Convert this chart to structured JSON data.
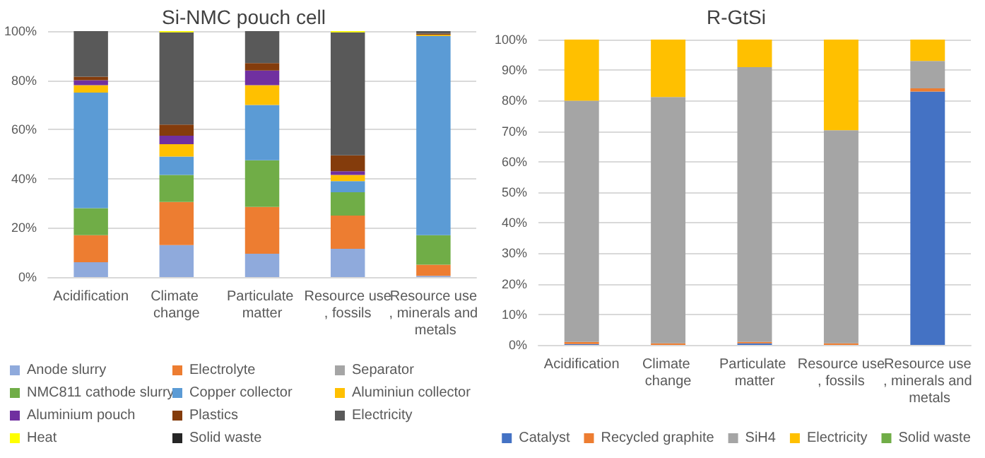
{
  "chart_data": [
    {
      "type": "bar",
      "title": "Si-NMC pouch cell",
      "stacked": true,
      "categories": [
        "Acidification",
        "Climate change",
        "Particulate matter",
        "Resource use, fossils",
        "Resource use, minerals and metals"
      ],
      "ylim": [
        0,
        100
      ],
      "yticks": [
        {
          "value": 0,
          "label": "0%"
        },
        {
          "value": 20,
          "label": "20%"
        },
        {
          "value": 40,
          "label": "40%"
        },
        {
          "value": 60,
          "label": "60%"
        },
        {
          "value": 80,
          "label": "80%"
        },
        {
          "value": 100,
          "label": "100%"
        }
      ],
      "grid": "y",
      "legend": "bottom",
      "series": [
        {
          "name": "Anode slurry",
          "color": "#8faadc",
          "values": [
            6,
            13,
            9.5,
            11.5,
            0.5
          ]
        },
        {
          "name": "Electrolyte",
          "color": "#ed7d31",
          "values": [
            11,
            17.5,
            19,
            13.5,
            4.5
          ]
        },
        {
          "name": "Separator",
          "color": "#a5a5a5",
          "values": [
            null,
            0,
            0,
            0,
            0
          ]
        },
        {
          "name": "NMC811 cathode slurry",
          "color": "#70ad47",
          "values": [
            11,
            11,
            19,
            9.5,
            12
          ]
        },
        {
          "name": "Copper collector",
          "color": "#5b9bd5",
          "values": [
            47,
            7.5,
            22.5,
            4.5,
            81
          ]
        },
        {
          "name": "Aluminiun collector",
          "color": "#ffc000",
          "values": [
            3,
            5,
            8,
            2.5,
            0.5
          ]
        },
        {
          "name": "Aluminium pouch",
          "color": "#7030a0",
          "values": [
            2,
            3.5,
            6,
            1.5,
            0
          ]
        },
        {
          "name": "Plastics",
          "color": "#843c0c",
          "values": [
            1.5,
            4.5,
            3,
            6.5,
            0.5
          ]
        },
        {
          "name": "Electricity",
          "color": "#595959",
          "values": [
            18.5,
            37.5,
            13,
            50,
            1
          ]
        },
        {
          "name": "Heat",
          "color": "#ffff00",
          "values": [
            0,
            0.5,
            0,
            0.5,
            0
          ]
        },
        {
          "name": "Solid waste",
          "color": "#262626",
          "values": [
            0,
            0,
            0,
            0,
            0
          ]
        }
      ]
    },
    {
      "type": "bar",
      "title": "R-GtSi",
      "stacked": true,
      "categories": [
        "Acidification",
        "Climate change",
        "Particulate matter",
        "Resource use, fossils",
        "Resource use, minerals and metals"
      ],
      "ylim": [
        0,
        100
      ],
      "yticks": [
        {
          "value": 0,
          "label": "0%"
        },
        {
          "value": 10,
          "label": "10%"
        },
        {
          "value": 20,
          "label": "20%"
        },
        {
          "value": 30,
          "label": "30%"
        },
        {
          "value": 40,
          "label": "40%"
        },
        {
          "value": 50,
          "label": "50%"
        },
        {
          "value": 60,
          "label": "60%"
        },
        {
          "value": 70,
          "label": "70%"
        },
        {
          "value": 80,
          "label": "80%"
        },
        {
          "value": 90,
          "label": "90%"
        },
        {
          "value": 100,
          "label": "100%"
        }
      ],
      "grid": "y",
      "legend": "bottom",
      "series": [
        {
          "name": "Catalyst",
          "color": "#4472c4",
          "values": [
            0.3,
            0,
            0.5,
            0,
            83
          ]
        },
        {
          "name": "Recycled graphite",
          "color": "#ed7d31",
          "values": [
            0.7,
            0.5,
            0.5,
            0.5,
            1
          ]
        },
        {
          "name": "SiH4",
          "color": "#a5a5a5",
          "values": [
            79,
            80.7,
            90,
            69.8,
            9
          ]
        },
        {
          "name": "Electricity",
          "color": "#ffc000",
          "values": [
            20,
            18.8,
            9,
            29.7,
            7
          ]
        },
        {
          "name": "Solid waste",
          "color": "#70ad47",
          "values": [
            0,
            0,
            0,
            0,
            0
          ]
        }
      ]
    }
  ]
}
